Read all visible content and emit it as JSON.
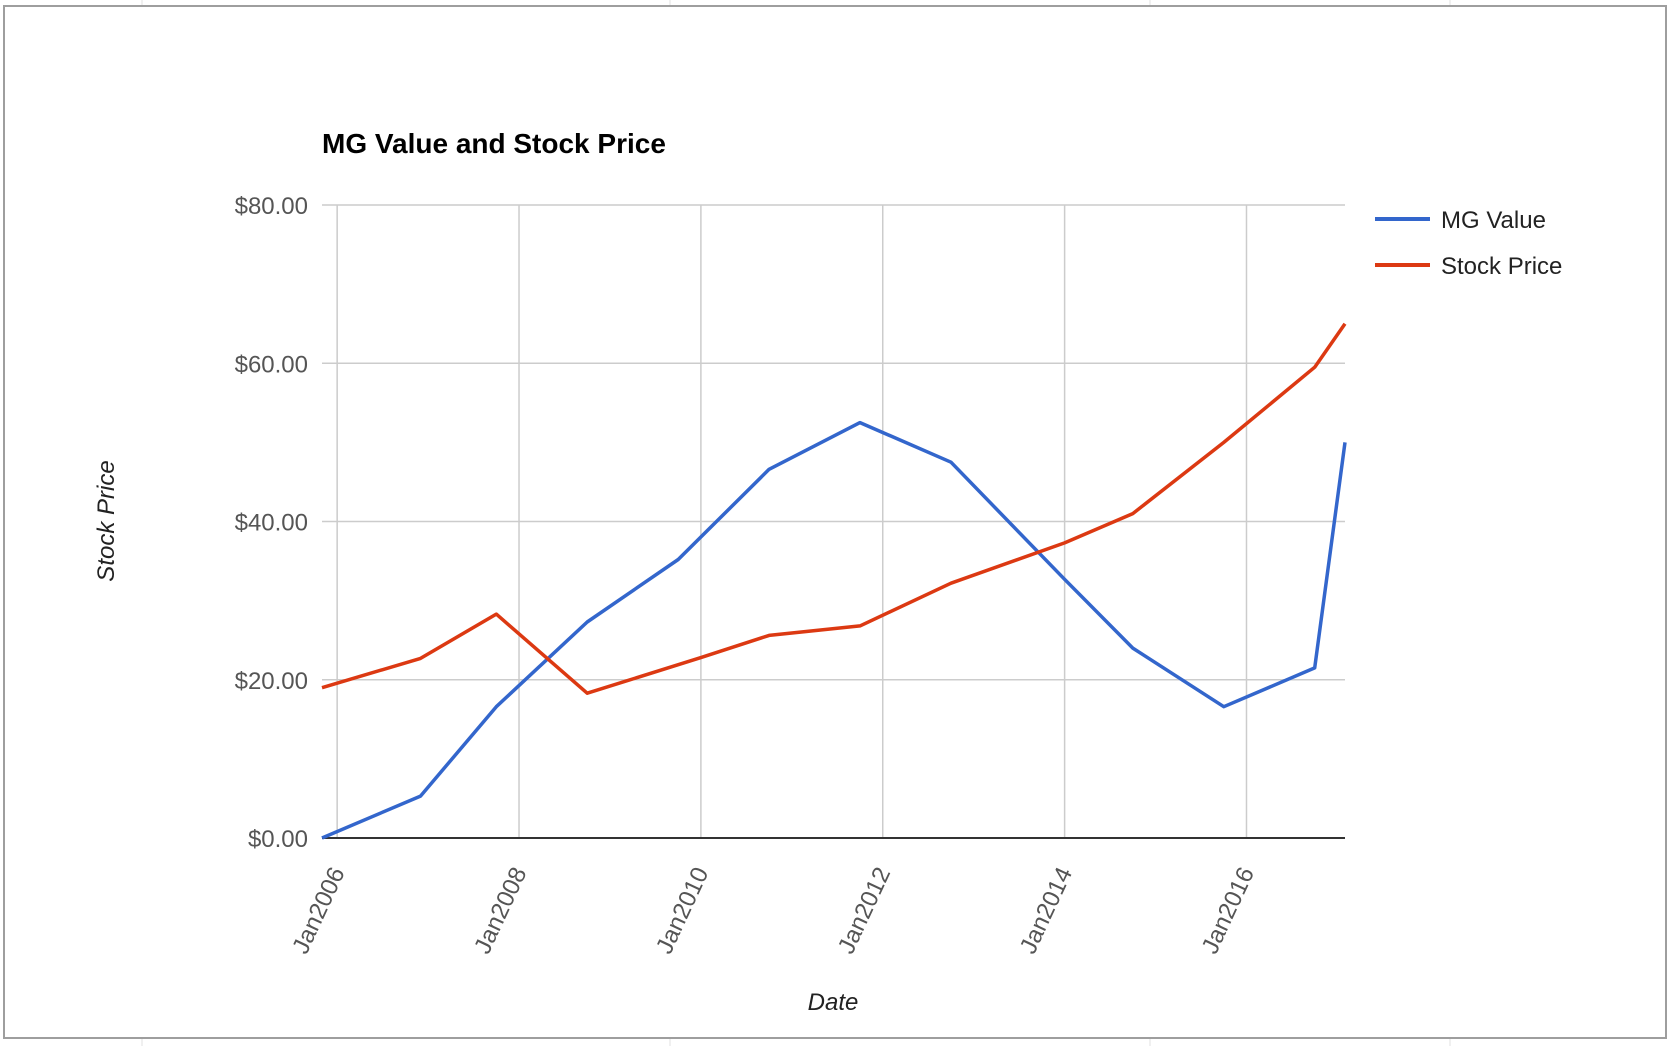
{
  "chart_data": {
    "type": "line",
    "title": "MG Value and Stock Price",
    "xlabel": "Date",
    "ylabel": "Stock Price",
    "ylim": [
      0,
      80
    ],
    "xlim": [
      "2005-11",
      "2017-02"
    ],
    "y_ticks": [
      "$0.00",
      "$20.00",
      "$40.00",
      "$60.00",
      "$80.00"
    ],
    "x_ticks": [
      "Jan2006",
      "Jan2008",
      "Jan2010",
      "Jan2012",
      "Jan2014",
      "Jan2016"
    ],
    "grid": true,
    "legend_position": "right",
    "series": [
      {
        "name": "MG Value",
        "color": "#3366cc",
        "points": [
          {
            "x": "2005-11",
            "y": 0.0
          },
          {
            "x": "2006-12",
            "y": 5.3
          },
          {
            "x": "2007-10",
            "y": 16.6
          },
          {
            "x": "2008-10",
            "y": 27.3
          },
          {
            "x": "2009-10",
            "y": 35.2
          },
          {
            "x": "2010-10",
            "y": 46.6
          },
          {
            "x": "2011-10",
            "y": 52.5
          },
          {
            "x": "2012-10",
            "y": 47.5
          },
          {
            "x": "2014-01",
            "y": 32.7
          },
          {
            "x": "2014-10",
            "y": 24.0
          },
          {
            "x": "2015-10",
            "y": 16.6
          },
          {
            "x": "2016-10",
            "y": 21.5
          },
          {
            "x": "2017-02",
            "y": 50.0
          }
        ]
      },
      {
        "name": "Stock Price",
        "color": "#dc3912",
        "points": [
          {
            "x": "2005-11",
            "y": 19.0
          },
          {
            "x": "2006-12",
            "y": 22.7
          },
          {
            "x": "2007-10",
            "y": 28.3
          },
          {
            "x": "2008-10",
            "y": 18.3
          },
          {
            "x": "2010-01",
            "y": 22.8
          },
          {
            "x": "2010-10",
            "y": 25.6
          },
          {
            "x": "2011-10",
            "y": 26.8
          },
          {
            "x": "2012-10",
            "y": 32.2
          },
          {
            "x": "2014-01",
            "y": 37.3
          },
          {
            "x": "2014-10",
            "y": 41.0
          },
          {
            "x": "2015-10",
            "y": 50.0
          },
          {
            "x": "2016-10",
            "y": 59.5
          },
          {
            "x": "2017-02",
            "y": 65.0
          }
        ]
      }
    ]
  }
}
